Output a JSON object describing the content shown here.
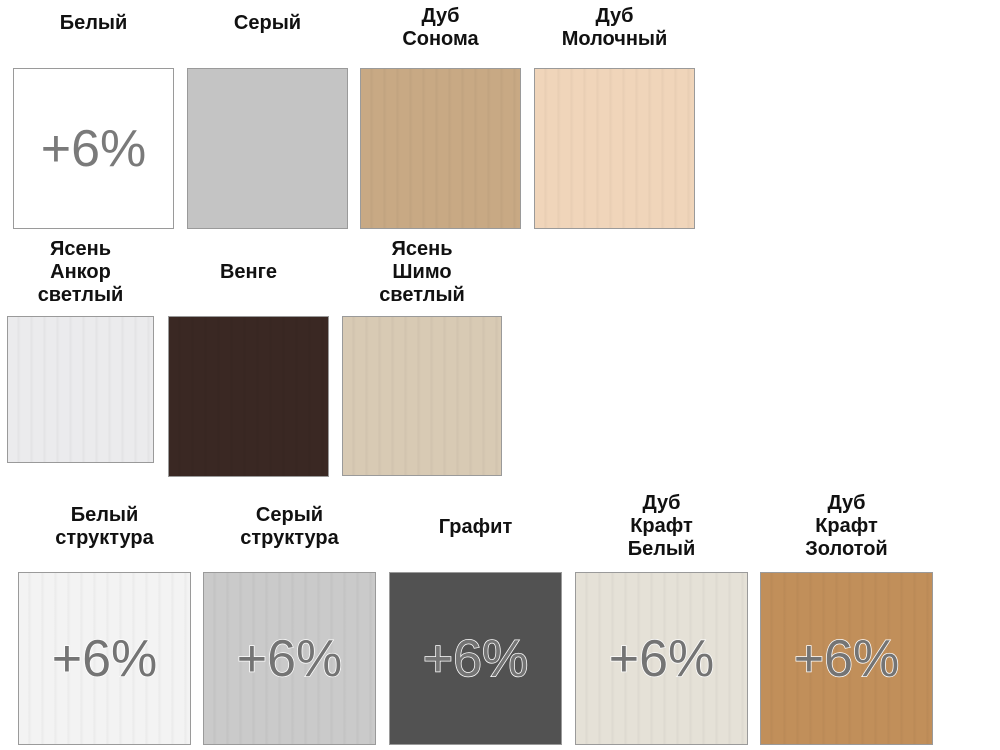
{
  "rows": [
    [
      {
        "name": "Белый",
        "color": "#ffffff",
        "badge": "+6%"
      },
      {
        "name": "Серый",
        "color": "#c4c4c4"
      },
      {
        "name": "Дуб\nСонома",
        "color": "#c8a984"
      },
      {
        "name": "Дуб\nМолочный",
        "color": "#f0d5ba"
      }
    ],
    [
      {
        "name": "Ясень\nАнкор\nсветлый",
        "color": "#ebebed"
      },
      {
        "name": "Венге",
        "color": "#3a2823"
      },
      {
        "name": "Ясень\nШимо\nсветлый",
        "color": "#d8cab4"
      }
    ],
    [
      {
        "name": "Белый\nструктура",
        "color": "#f3f3f3",
        "badge": "+6%"
      },
      {
        "name": "Серый\nструктура",
        "color": "#cacaca",
        "badge": "+6%"
      },
      {
        "name": "Графит",
        "color": "#525252",
        "badge": "+6%"
      },
      {
        "name": "Дуб\nКрафт\nБелый",
        "color": "#e5e1d7",
        "badge": "+6%"
      },
      {
        "name": "Дуб\nКрафт\nЗолотой",
        "color": "#c18f5a",
        "badge": "+6%"
      }
    ]
  ]
}
